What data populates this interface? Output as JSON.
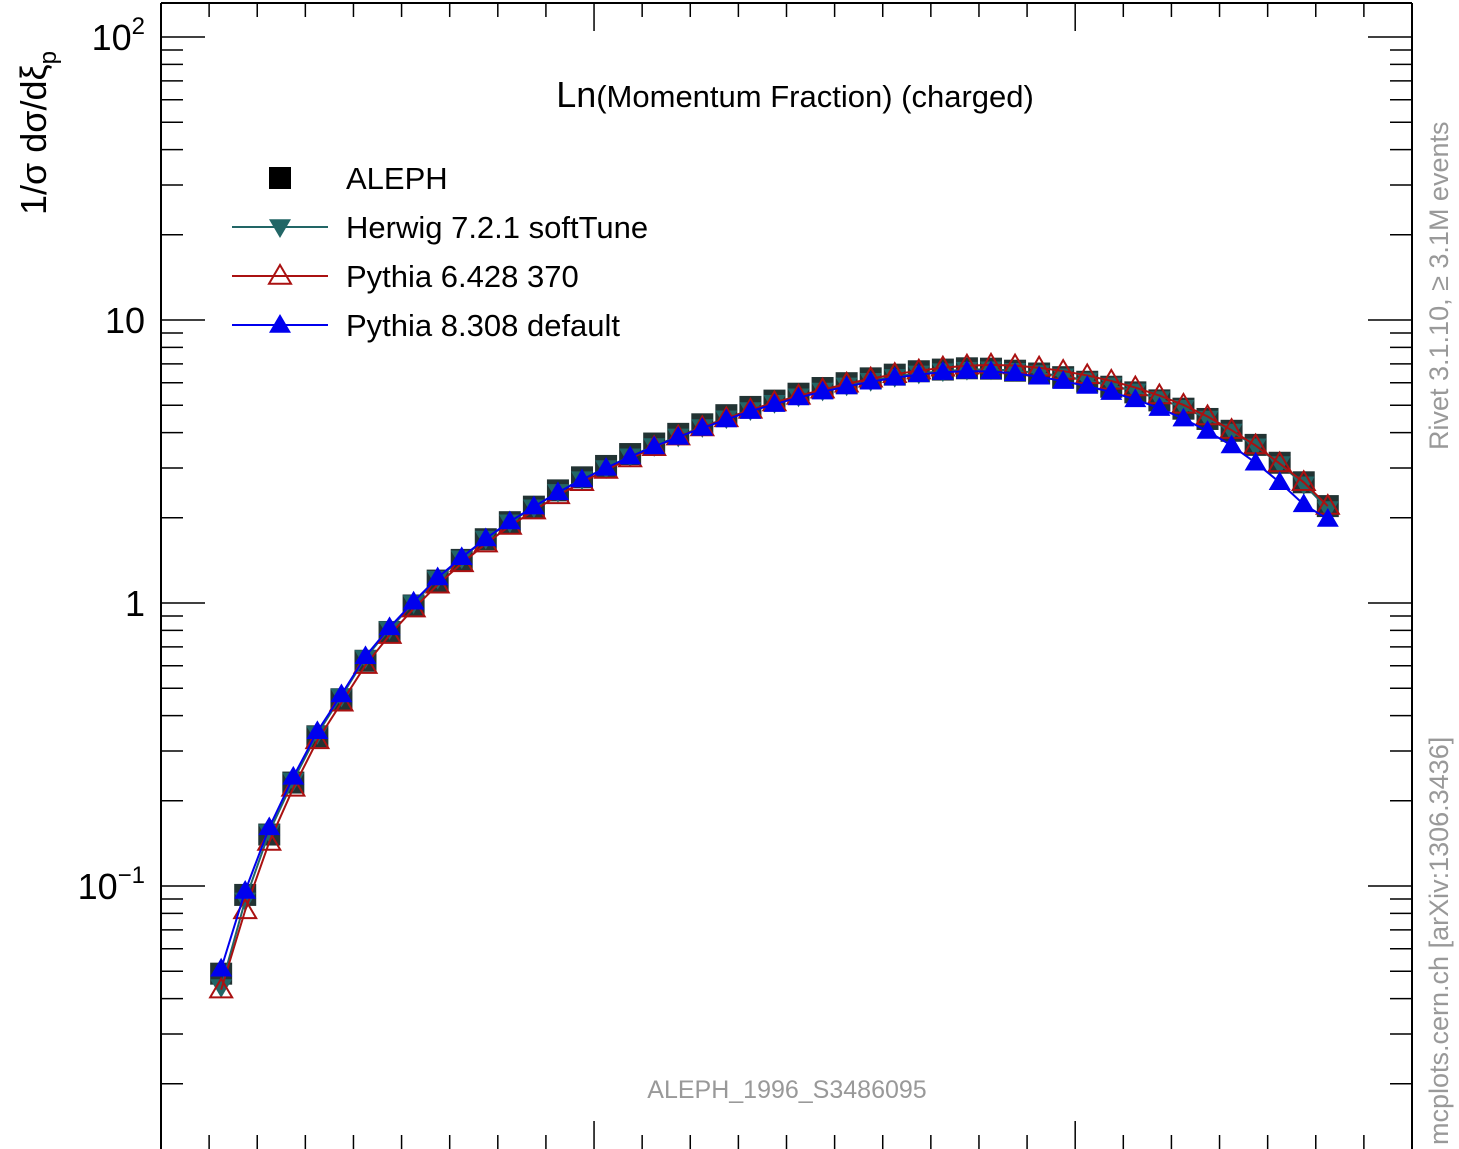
{
  "chart_data": {
    "type": "line",
    "title": "Ln(Momentum Fraction) (charged)",
    "title_prefix": "Ln",
    "title_rest": "(Momentum Fraction) (charged)",
    "ylabel": "1/σ dσ/dξ",
    "ylabel_sub": "p",
    "yscale": "log",
    "ylim": [
      0.016,
      130
    ],
    "xlim": [
      0,
      52
    ],
    "grid": false,
    "legend_position": "top-left",
    "y_tick_labels": [
      {
        "value": 100,
        "base": "10",
        "exp": "2"
      },
      {
        "value": 10,
        "base": "10",
        "exp": ""
      },
      {
        "value": 1,
        "base": "1",
        "exp": ""
      },
      {
        "value": 0.1,
        "base": "10",
        "exp": "−1"
      }
    ],
    "annotations": {
      "analysis_id": "ALEPH_1996_S3486095",
      "right_label_top": "Rivet 3.1.10, ≥ 3.1M events",
      "right_label_bottom": "mcplots.cern.ch [arXiv:1306.3436]"
    },
    "series": [
      {
        "name": "ALEPH",
        "color": "#000000",
        "marker": "square",
        "line": false,
        "x": [
          2.5,
          3.5,
          4.5,
          5.5,
          6.5,
          7.5,
          8.5,
          9.5,
          10.5,
          11.5,
          12.5,
          13.5,
          14.5,
          15.5,
          16.5,
          17.5,
          18.5,
          19.5,
          20.5,
          21.5,
          22.5,
          23.5,
          24.5,
          25.5,
          26.5,
          27.5,
          28.5,
          29.5,
          30.5,
          31.5,
          32.5,
          33.5,
          34.5,
          35.5,
          36.5,
          37.5,
          38.5,
          39.5,
          40.5,
          41.5,
          42.5,
          43.5,
          44.5,
          45.5,
          46.5,
          47.5,
          48.5,
          49.5,
          50.5,
          51.5
        ],
        "values": [
          0.049,
          0.093,
          0.152,
          0.232,
          0.338,
          0.457,
          0.625,
          0.79,
          0.98,
          1.2,
          1.42,
          1.68,
          1.93,
          2.19,
          2.5,
          2.78,
          3.05,
          3.36,
          3.66,
          3.96,
          4.28,
          4.61,
          4.93,
          5.19,
          5.49,
          5.75,
          5.98,
          6.22,
          6.41,
          6.59,
          6.68,
          6.75,
          6.73,
          6.62,
          6.47,
          6.28,
          6.05,
          5.81,
          5.55,
          5.2,
          4.86,
          4.47,
          4.06,
          3.62,
          3.13,
          2.67,
          2.2,
          0.0,
          0.0,
          0.0
        ]
      },
      {
        "name": "Herwig 7.2.1 softTune",
        "color": "#226666",
        "marker": "triangle-down",
        "line": true,
        "x": [
          2.5,
          3.5,
          4.5,
          5.5,
          6.5,
          7.5,
          8.5,
          9.5,
          10.5,
          11.5,
          12.5,
          13.5,
          14.5,
          15.5,
          16.5,
          17.5,
          18.5,
          19.5,
          20.5,
          21.5,
          22.5,
          23.5,
          24.5,
          25.5,
          26.5,
          27.5,
          28.5,
          29.5,
          30.5,
          31.5,
          32.5,
          33.5,
          34.5,
          35.5,
          36.5,
          37.5,
          38.5,
          39.5,
          40.5,
          41.5,
          42.5,
          43.5,
          44.5,
          45.5,
          46.5,
          47.5,
          48.5,
          49.5,
          50.5,
          51.5
        ],
        "values": [
          0.044,
          0.089,
          0.155,
          0.236,
          0.345,
          0.468,
          0.64,
          0.81,
          1.0,
          1.22,
          1.44,
          1.69,
          1.93,
          2.18,
          2.47,
          2.74,
          3.0,
          3.3,
          3.59,
          3.88,
          4.19,
          4.5,
          4.81,
          5.1,
          5.38,
          5.64,
          5.88,
          6.1,
          6.3,
          6.48,
          6.6,
          6.68,
          6.7,
          6.62,
          6.5,
          6.33,
          6.12,
          5.88,
          5.6,
          5.26,
          4.9,
          4.49,
          4.04,
          3.58,
          3.1,
          2.63,
          2.15,
          0.0,
          0.0,
          0.0
        ]
      },
      {
        "name": "Pythia 6.428 370",
        "color": "#aa1111",
        "marker": "triangle-up-open",
        "line": true,
        "x": [
          2.5,
          3.5,
          4.5,
          5.5,
          6.5,
          7.5,
          8.5,
          9.5,
          10.5,
          11.5,
          12.5,
          13.5,
          14.5,
          15.5,
          16.5,
          17.5,
          18.5,
          19.5,
          20.5,
          21.5,
          22.5,
          23.5,
          24.5,
          25.5,
          26.5,
          27.5,
          28.5,
          29.5,
          30.5,
          31.5,
          32.5,
          33.5,
          34.5,
          35.5,
          36.5,
          37.5,
          38.5,
          39.5,
          40.5,
          41.5,
          42.5,
          43.5,
          44.5,
          45.5,
          46.5,
          47.5,
          48.5,
          49.5,
          50.5,
          51.5
        ],
        "values": [
          0.043,
          0.082,
          0.143,
          0.222,
          0.327,
          0.444,
          0.603,
          0.77,
          0.955,
          1.16,
          1.38,
          1.62,
          1.87,
          2.12,
          2.4,
          2.67,
          2.95,
          3.24,
          3.55,
          3.87,
          4.17,
          4.49,
          4.81,
          5.11,
          5.39,
          5.67,
          5.95,
          6.2,
          6.43,
          6.62,
          6.78,
          6.89,
          6.94,
          6.9,
          6.78,
          6.6,
          6.37,
          6.09,
          5.77,
          5.41,
          5.01,
          4.56,
          4.08,
          3.6,
          3.11,
          2.67,
          2.2,
          0.0,
          0.0,
          0.0
        ]
      },
      {
        "name": "Pythia 8.308 default",
        "color": "#0000ee",
        "marker": "triangle-up",
        "line": true,
        "x": [
          2.5,
          3.5,
          4.5,
          5.5,
          6.5,
          7.5,
          8.5,
          9.5,
          10.5,
          11.5,
          12.5,
          13.5,
          14.5,
          15.5,
          16.5,
          17.5,
          18.5,
          19.5,
          20.5,
          21.5,
          22.5,
          23.5,
          24.5,
          25.5,
          26.5,
          27.5,
          28.5,
          29.5,
          30.5,
          31.5,
          32.5,
          33.5,
          34.5,
          35.5,
          36.5,
          37.5,
          38.5,
          39.5,
          40.5,
          41.5,
          42.5,
          43.5,
          44.5,
          45.5,
          46.5,
          47.5,
          48.5,
          49.5,
          50.5,
          51.5
        ],
        "values": [
          0.051,
          0.096,
          0.161,
          0.243,
          0.352,
          0.475,
          0.648,
          0.82,
          1.01,
          1.23,
          1.45,
          1.69,
          1.94,
          2.19,
          2.46,
          2.73,
          3.0,
          3.29,
          3.57,
          3.86,
          4.15,
          4.45,
          4.76,
          5.04,
          5.32,
          5.58,
          5.82,
          6.05,
          6.25,
          6.42,
          6.54,
          6.6,
          6.58,
          6.48,
          6.3,
          6.08,
          5.84,
          5.56,
          5.24,
          4.88,
          4.48,
          4.05,
          3.6,
          3.13,
          2.67,
          2.23,
          1.98,
          0.0,
          0.0,
          0.0
        ]
      }
    ]
  }
}
